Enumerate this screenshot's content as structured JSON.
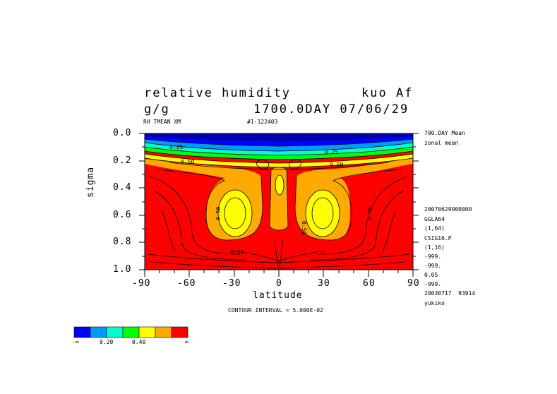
{
  "header": {
    "title_left": "relative humidity",
    "title_right": "kuo Af",
    "units": "g/g",
    "time": "1700.0DAY 07/06/29",
    "var_label": "RH TMEAN XM",
    "run_id": "#1-122403"
  },
  "side_info": {
    "line1": "700.DAY Mean",
    "line2": "zonal mean",
    "meta": [
      "20070629000000",
      "GGLA64",
      "(1,64)",
      "CSIG16.P",
      "(1,16)",
      "-999.",
      "-999.",
      "0.05",
      "-999.",
      "20030717  93914",
      "yukiko"
    ]
  },
  "contour_interval_text": "CONTOUR INTERVAL = 5.000E-02",
  "chart_data": {
    "type": "contour",
    "x": [
      -90,
      -60,
      -30,
      0,
      30,
      60,
      90
    ],
    "y": [
      0.0,
      0.2,
      0.4,
      0.6,
      0.8,
      1.0
    ],
    "x_tick_labels": [
      "-90",
      "-60",
      "-30",
      "0",
      "30",
      "60",
      "90"
    ],
    "y_tick_labels": [
      "0.0",
      "0.2",
      "0.4",
      "0.6",
      "0.8",
      "1.0"
    ],
    "xlabel": "latitude",
    "ylabel": "sigma",
    "xlim": [
      -90,
      90
    ],
    "ylim": [
      1.0,
      0.0
    ],
    "contour_interval": 0.05,
    "contour_labels": [
      {
        "text": "0.25",
        "lat": -78,
        "sigma": 0.11
      },
      {
        "text": "0.25",
        "lat": 35,
        "sigma": 0.15
      },
      {
        "text": "0.50",
        "lat": -70,
        "sigma": 0.22
      },
      {
        "text": "0.50",
        "lat": 40,
        "sigma": 0.24
      },
      {
        "text": "0.50",
        "lat": -37,
        "sigma": 0.57
      },
      {
        "text": "0.50",
        "lat": 21,
        "sigma": 0.59
      },
      {
        "text": "0.75",
        "lat": -25,
        "sigma": 0.88
      },
      {
        "text": "0.75",
        "lat": 60,
        "sigma": 0.7
      }
    ],
    "colorbar": {
      "colors": [
        "#0000ff",
        "#0099ff",
        "#00ffcc",
        "#00ff00",
        "#ffff00",
        "#ffaa00",
        "#ff0000"
      ],
      "labels": [
        "-∞",
        "0.20",
        "0.40",
        "∞"
      ]
    }
  }
}
